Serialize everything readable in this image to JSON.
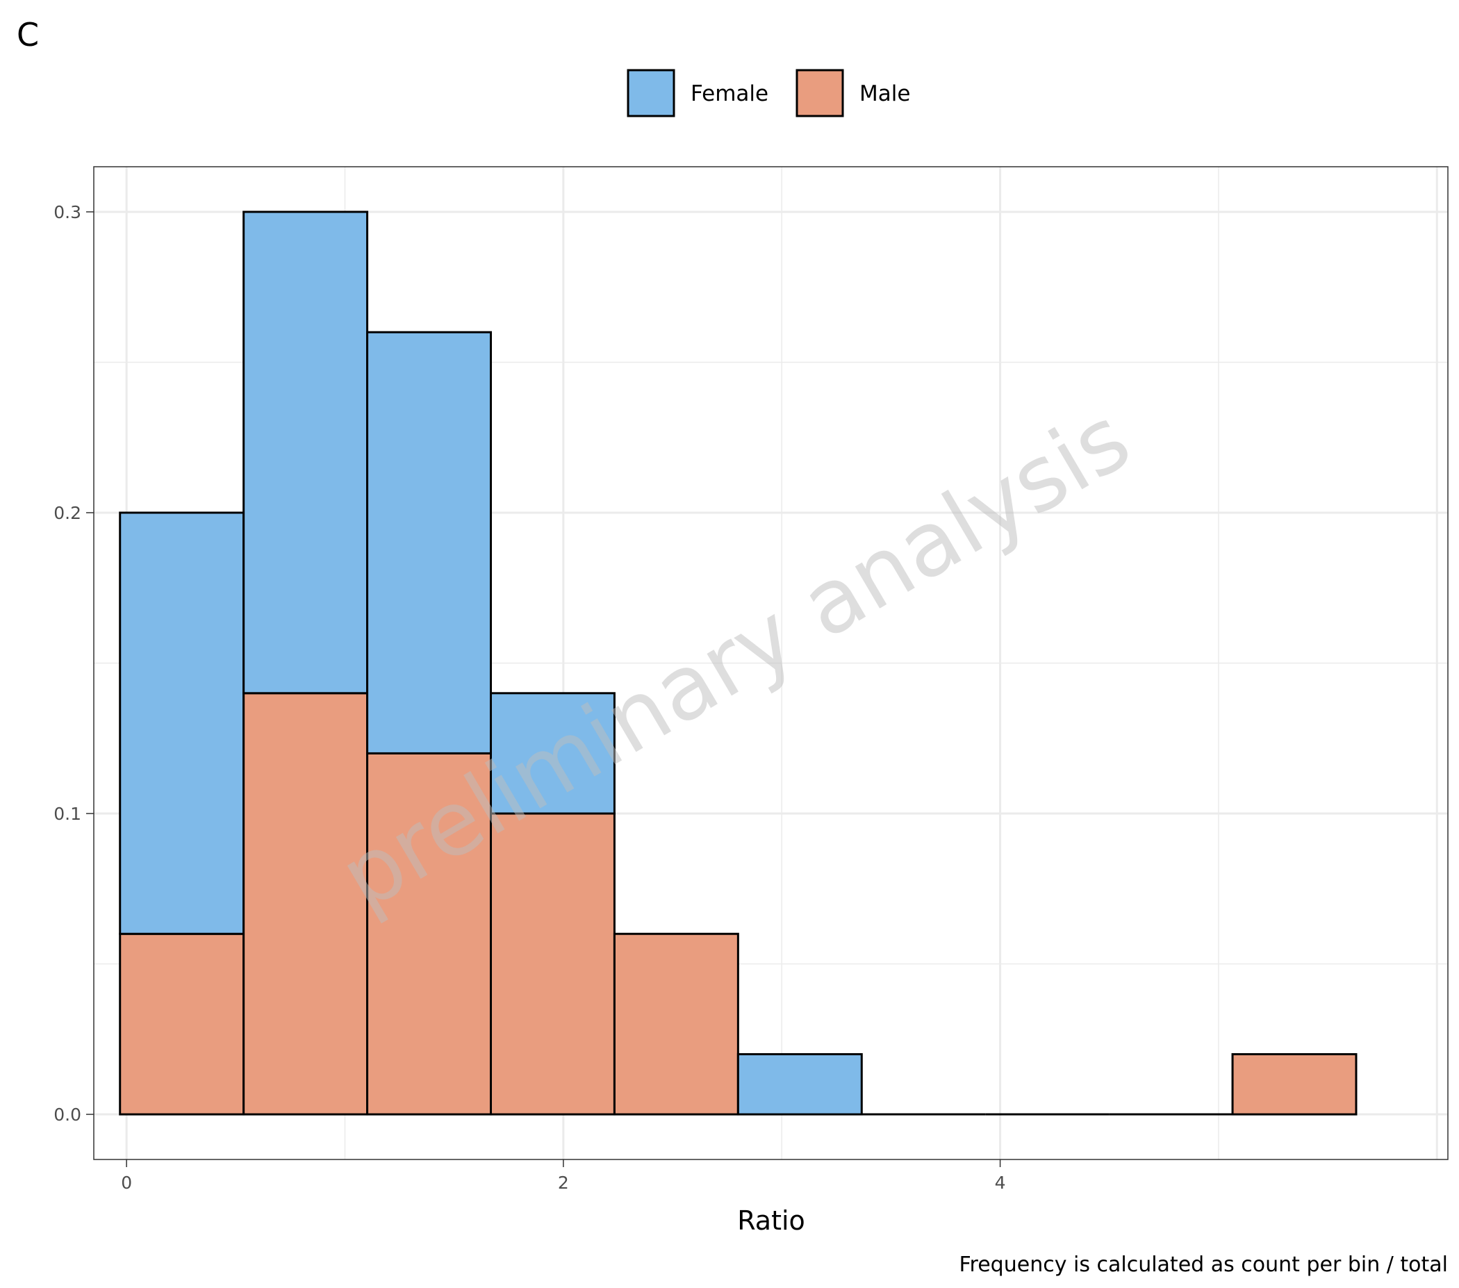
{
  "panel_label": "C",
  "chart_data": {
    "type": "bar",
    "stacked": true,
    "histogram": true,
    "title": "",
    "xlabel": "Ratio",
    "ylabel": "",
    "caption": "Frequency is calculated as count per bin / total",
    "watermark": "preliminary analysis",
    "xlim": [
      -0.15,
      6.05
    ],
    "ylim": [
      -0.015,
      0.315
    ],
    "x_ticks": [
      0,
      2,
      4
    ],
    "x_tick_labels": [
      "0",
      "2",
      "4"
    ],
    "y_ticks": [
      0.0,
      0.1,
      0.2,
      0.3
    ],
    "y_tick_labels": [
      "0.0",
      "0.1",
      "0.2",
      "0.3"
    ],
    "grid": true,
    "legend_position": "top",
    "bin_edges": [
      -0.03,
      0.536,
      1.102,
      1.668,
      2.234,
      2.8,
      3.366,
      3.932,
      4.498,
      5.064,
      5.63
    ],
    "series": [
      {
        "name": "Female",
        "color": "#7fbae9",
        "values": [
          0.14,
          0.16,
          0.14,
          0.04,
          0.0,
          0.02,
          0.0,
          0.0,
          0.0,
          0.0
        ]
      },
      {
        "name": "Male",
        "color": "#e99d7f",
        "values": [
          0.06,
          0.14,
          0.12,
          0.1,
          0.06,
          0.0,
          0.0,
          0.0,
          0.0,
          0.02
        ]
      }
    ]
  }
}
